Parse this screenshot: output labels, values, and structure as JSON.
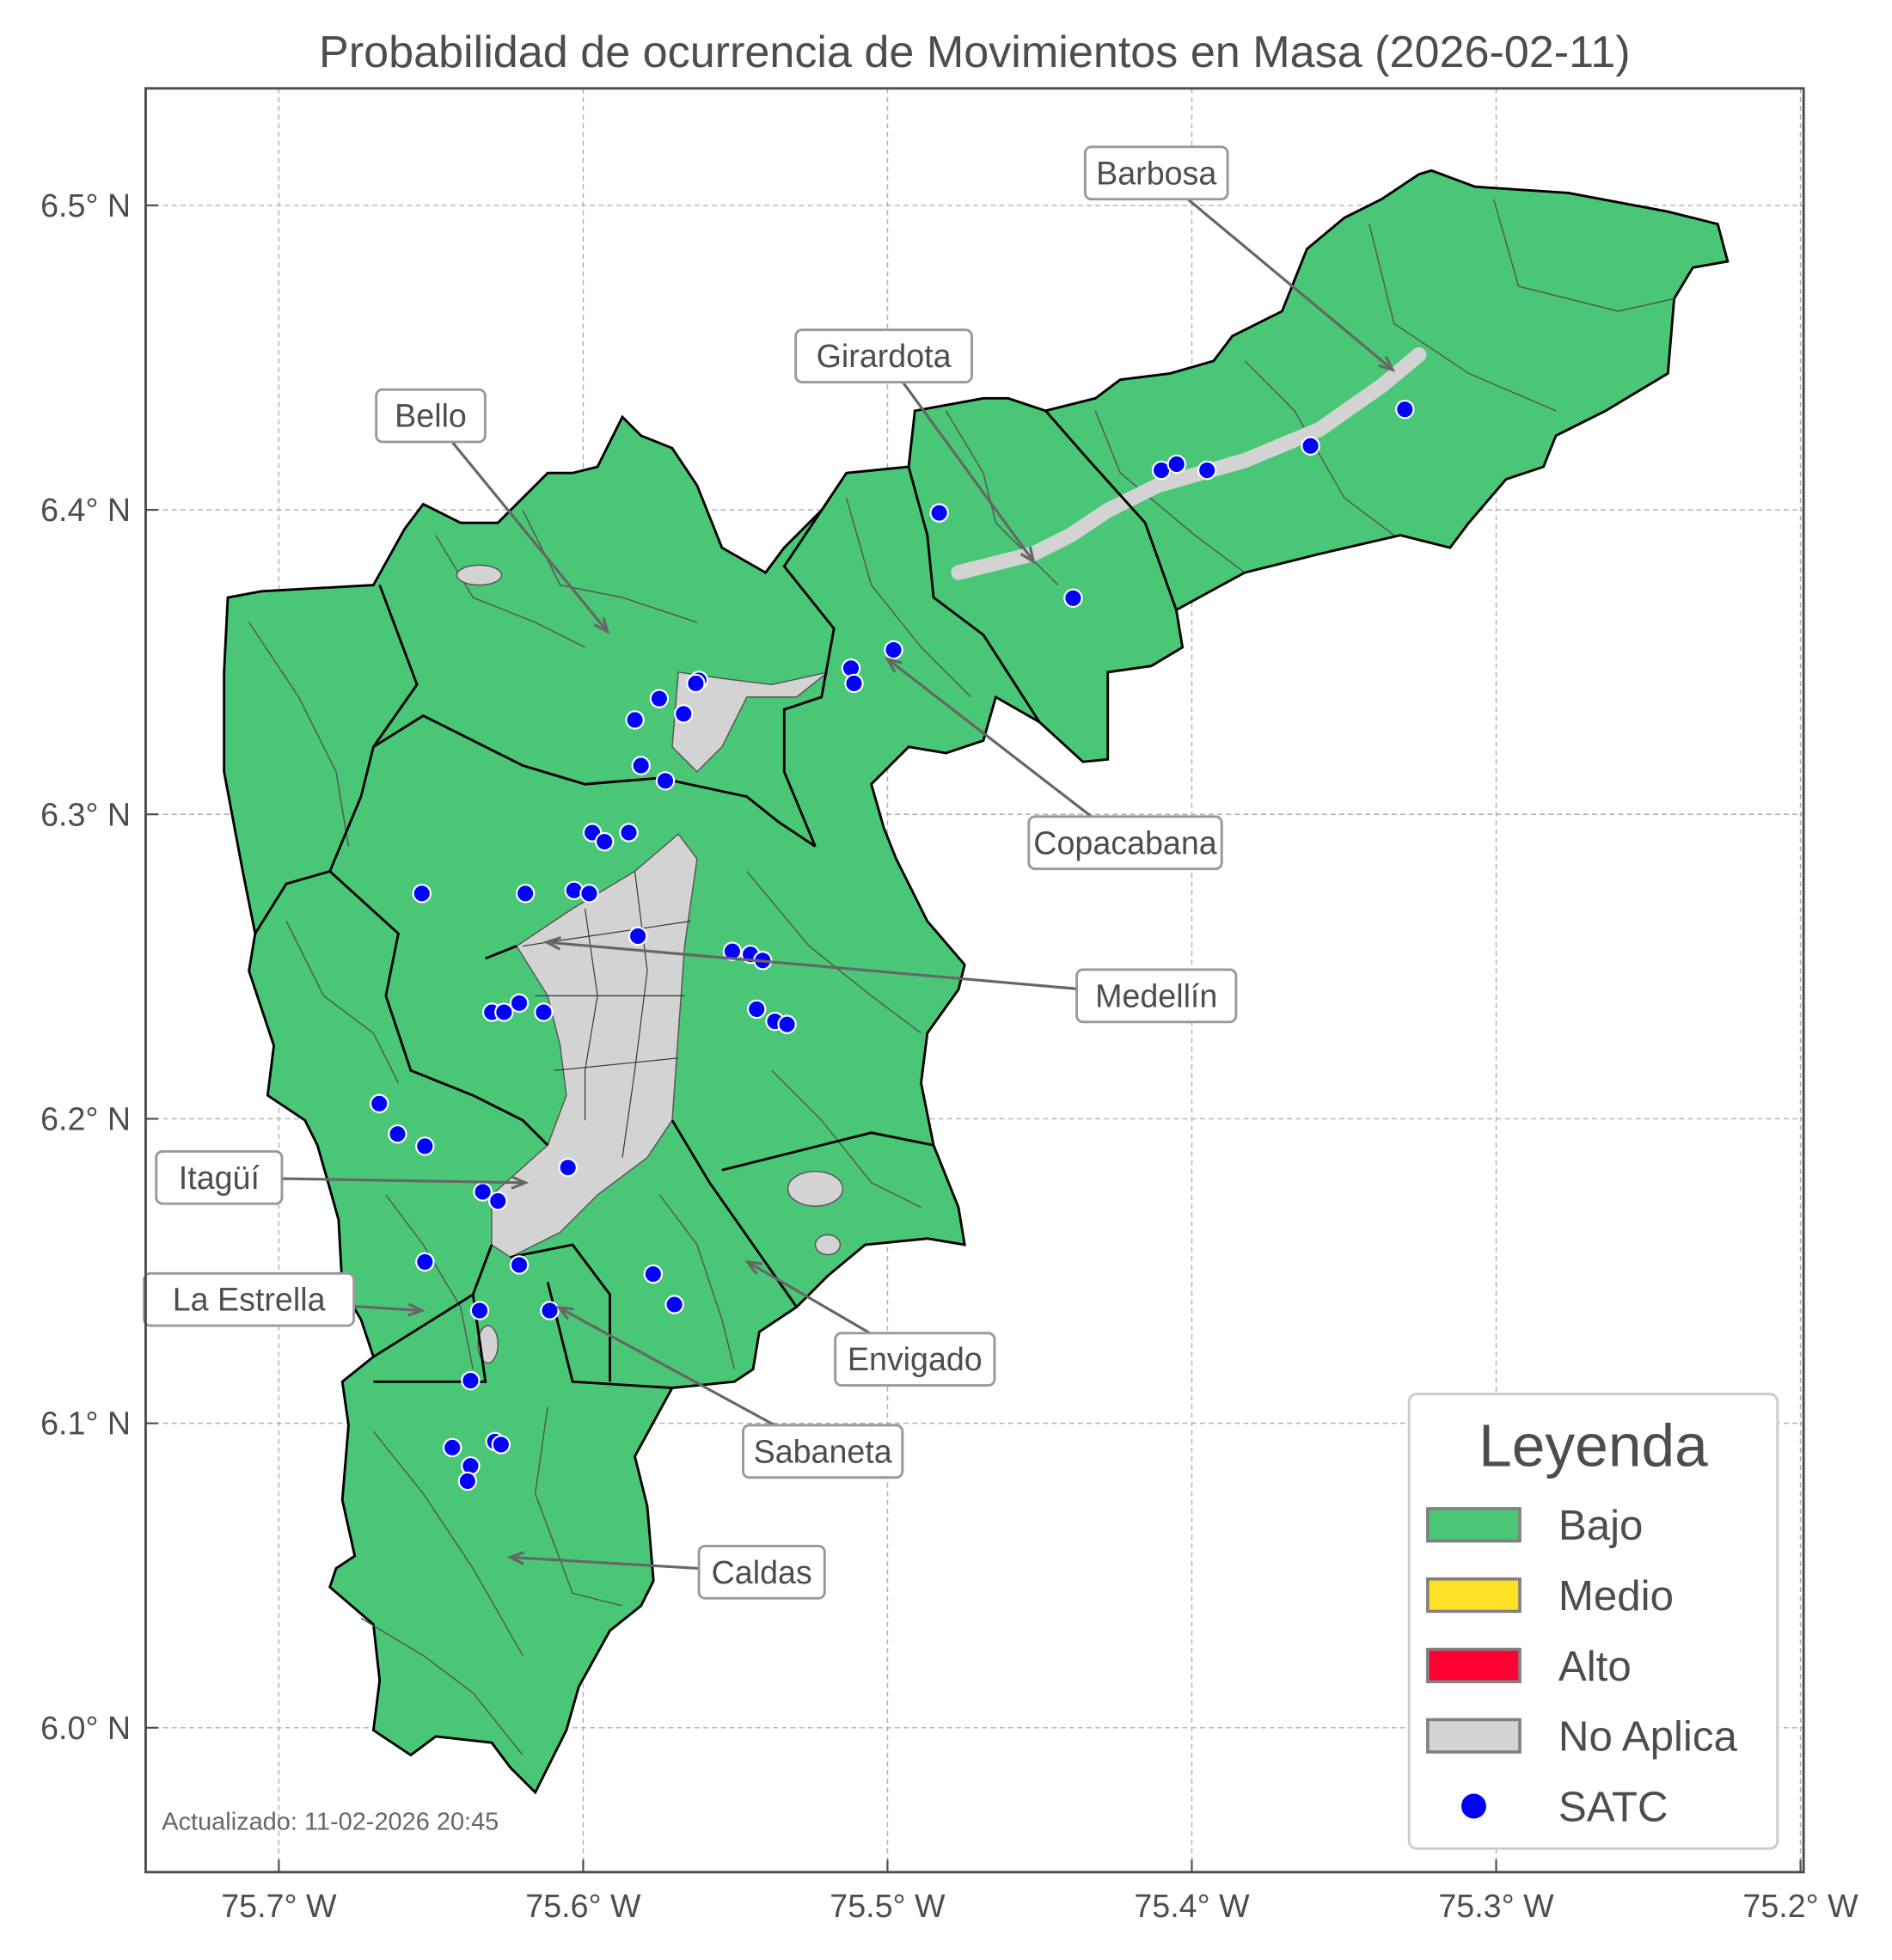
{
  "chart_data": {
    "type": "map",
    "title": "Probabilidad de ocurrencia de Movimientos en Masa (2026-02-11)",
    "footnote": "Actualizado: 11-02-2026 20:45",
    "xlim": [
      -75.744,
      -75.199
    ],
    "ylim": [
      5.953,
      6.538
    ],
    "grid": true,
    "x_ticks": [
      {
        "value": -75.7,
        "label": "75.7° W"
      },
      {
        "value": -75.6,
        "label": "75.6° W"
      },
      {
        "value": -75.5,
        "label": "75.5° W"
      },
      {
        "value": -75.4,
        "label": "75.4° W"
      },
      {
        "value": -75.3,
        "label": "75.3° W"
      },
      {
        "value": -75.2,
        "label": "75.2° W"
      }
    ],
    "y_ticks": [
      {
        "value": 6.5,
        "label": "6.5° N"
      },
      {
        "value": 6.4,
        "label": "6.4° N"
      },
      {
        "value": 6.3,
        "label": "6.3° N"
      },
      {
        "value": 6.2,
        "label": "6.2° N"
      },
      {
        "value": 6.1,
        "label": "6.1° N"
      },
      {
        "value": 6.0,
        "label": "6.0° N"
      }
    ],
    "legend": {
      "title": "Leyenda",
      "placement": "lower-right",
      "items": [
        {
          "label": "Bajo",
          "color": "#4ac776",
          "kind": "patch"
        },
        {
          "label": "Medio",
          "color": "#fde127",
          "kind": "patch"
        },
        {
          "label": "Alto",
          "color": "#ff0033",
          "kind": "patch"
        },
        {
          "label": "No Aplica",
          "color": "#d3d3d3",
          "kind": "patch"
        },
        {
          "label": "SATC",
          "color": "#0000ff",
          "kind": "point"
        }
      ]
    },
    "fill_category_shown": "Bajo",
    "municipalities": [
      {
        "name": "Barbosa",
        "lon": -75.334,
        "lat": 6.446
      },
      {
        "name": "Girardota",
        "lon": -75.452,
        "lat": 6.383
      },
      {
        "name": "Bello",
        "lon": -75.592,
        "lat": 6.36
      },
      {
        "name": "Copacabana",
        "lon": -75.5,
        "lat": 6.351
      },
      {
        "name": "Medellín",
        "lon": -75.612,
        "lat": 6.258
      },
      {
        "name": "Itagüí",
        "lon": -75.619,
        "lat": 6.179
      },
      {
        "name": "La Estrella",
        "lon": -75.653,
        "lat": 6.137
      },
      {
        "name": "Envigado",
        "lon": -75.546,
        "lat": 6.153
      },
      {
        "name": "Sabaneta",
        "lon": -75.608,
        "lat": 6.138
      },
      {
        "name": "Caldas",
        "lon": -75.624,
        "lat": 6.056
      }
    ],
    "satc_points": [
      [
        -75.483,
        6.399
      ],
      [
        -75.41,
        6.413
      ],
      [
        -75.405,
        6.415
      ],
      [
        -75.395,
        6.413
      ],
      [
        -75.361,
        6.421
      ],
      [
        -75.33,
        6.433
      ],
      [
        -75.439,
        6.371
      ],
      [
        -75.498,
        6.354
      ],
      [
        -75.512,
        6.348
      ],
      [
        -75.511,
        6.343
      ],
      [
        -75.562,
        6.344
      ],
      [
        -75.563,
        6.343
      ],
      [
        -75.567,
        6.333
      ],
      [
        -75.575,
        6.338
      ],
      [
        -75.583,
        6.331
      ],
      [
        -75.581,
        6.316
      ],
      [
        -75.573,
        6.311
      ],
      [
        -75.597,
        6.294
      ],
      [
        -75.593,
        6.291
      ],
      [
        -75.585,
        6.294
      ],
      [
        -75.653,
        6.274
      ],
      [
        -75.619,
        6.274
      ],
      [
        -75.603,
        6.275
      ],
      [
        -75.598,
        6.274
      ],
      [
        -75.582,
        6.26
      ],
      [
        -75.551,
        6.255
      ],
      [
        -75.545,
        6.254
      ],
      [
        -75.541,
        6.252
      ],
      [
        -75.543,
        6.236
      ],
      [
        -75.537,
        6.232
      ],
      [
        -75.533,
        6.231
      ],
      [
        -75.621,
        6.238
      ],
      [
        -75.63,
        6.235
      ],
      [
        -75.626,
        6.235
      ],
      [
        -75.613,
        6.235
      ],
      [
        -75.667,
        6.205
      ],
      [
        -75.661,
        6.195
      ],
      [
        -75.652,
        6.191
      ],
      [
        -75.605,
        6.184
      ],
      [
        -75.633,
        6.176
      ],
      [
        -75.628,
        6.173
      ],
      [
        -75.652,
        6.153
      ],
      [
        -75.621,
        6.152
      ],
      [
        -75.577,
        6.149
      ],
      [
        -75.57,
        6.139
      ],
      [
        -75.634,
        6.137
      ],
      [
        -75.611,
        6.137
      ],
      [
        -75.637,
        6.114
      ],
      [
        -75.643,
        6.092
      ],
      [
        -75.629,
        6.094
      ],
      [
        -75.627,
        6.093
      ],
      [
        -75.637,
        6.086
      ],
      [
        -75.638,
        6.081
      ]
    ]
  }
}
